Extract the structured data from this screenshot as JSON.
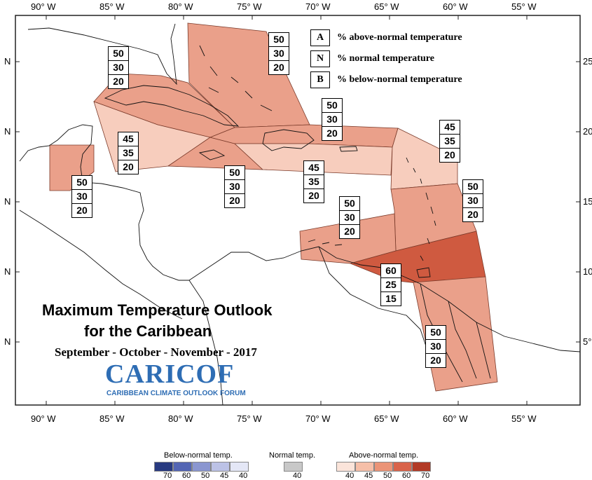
{
  "map": {
    "title_line1": "Maximum Temperature Outlook",
    "title_line2": "for the Caribbean",
    "subtitle": "September - October - November - 2017",
    "logo_text": "CARICOF",
    "logo_subtext": "CARIBBEAN CLIMATE OUTLOOK FORUM",
    "longitude_ticks": [
      "90° W",
      "85° W",
      "80° W",
      "75° W",
      "70° W",
      "65° W",
      "60° W",
      "55° W"
    ],
    "latitude_ticks": [
      "N",
      "N",
      "N",
      "N",
      "N"
    ],
    "latitude_ticks_right": [
      "25°",
      "20°",
      "15°",
      "10°",
      "5°"
    ]
  },
  "legend_key": [
    {
      "key": "A",
      "label": "% above-normal temperature"
    },
    {
      "key": "N",
      "label": "% normal temperature"
    },
    {
      "key": "B",
      "label": "% below-normal temperature"
    }
  ],
  "regions": [
    {
      "name": "bahamas",
      "color": "#eaa08a",
      "above": "50",
      "normal": "30",
      "below": "20"
    },
    {
      "name": "cuba",
      "color": "#eaa08a",
      "above": "50",
      "normal": "30",
      "below": "20"
    },
    {
      "name": "belize",
      "color": "#eaa08a",
      "above": "50",
      "normal": "30",
      "below": "20"
    },
    {
      "name": "cayman-jamaica-channel",
      "color": "#f7cdbd",
      "above": "45",
      "normal": "35",
      "below": "20"
    },
    {
      "name": "jamaica",
      "color": "#eaa08a",
      "above": "50",
      "normal": "30",
      "below": "20"
    },
    {
      "name": "hispaniola-north",
      "color": "#eaa08a",
      "above": "50",
      "normal": "30",
      "below": "20"
    },
    {
      "name": "hispaniola-puerto-rico-south",
      "color": "#f7cdbd",
      "above": "45",
      "normal": "35",
      "below": "20"
    },
    {
      "name": "northern-lesser-antilles",
      "color": "#f7cdbd",
      "above": "45",
      "normal": "35",
      "below": "20"
    },
    {
      "name": "eastern-caribbean",
      "color": "#eaa08a",
      "above": "50",
      "normal": "30",
      "below": "20"
    },
    {
      "name": "abc-islands",
      "color": "#eaa08a",
      "above": "50",
      "normal": "30",
      "below": "20"
    },
    {
      "name": "trinidad-venezuela",
      "color": "#cf5a40",
      "above": "60",
      "normal": "25",
      "below": "15"
    },
    {
      "name": "guianas",
      "color": "#eaa08a",
      "above": "50",
      "normal": "30",
      "below": "20"
    }
  ],
  "color_scale": {
    "below_title": "Below-normal temp.",
    "normal_title": "Normal temp.",
    "above_title": "Above-normal temp.",
    "below": [
      {
        "value": "70",
        "color": "#283a80"
      },
      {
        "value": "60",
        "color": "#5466b4"
      },
      {
        "value": "50",
        "color": "#8a96d0"
      },
      {
        "value": "45",
        "color": "#bcc2e6"
      },
      {
        "value": "40",
        "color": "#e4e7f6"
      }
    ],
    "normal": [
      {
        "value": "40",
        "color": "#c8c8c8"
      }
    ],
    "above": [
      {
        "value": "40",
        "color": "#fbe4da"
      },
      {
        "value": "45",
        "color": "#f6bfa8"
      },
      {
        "value": "50",
        "color": "#eb9477"
      },
      {
        "value": "60",
        "color": "#d9634a"
      },
      {
        "value": "70",
        "color": "#b23a26"
      }
    ]
  }
}
